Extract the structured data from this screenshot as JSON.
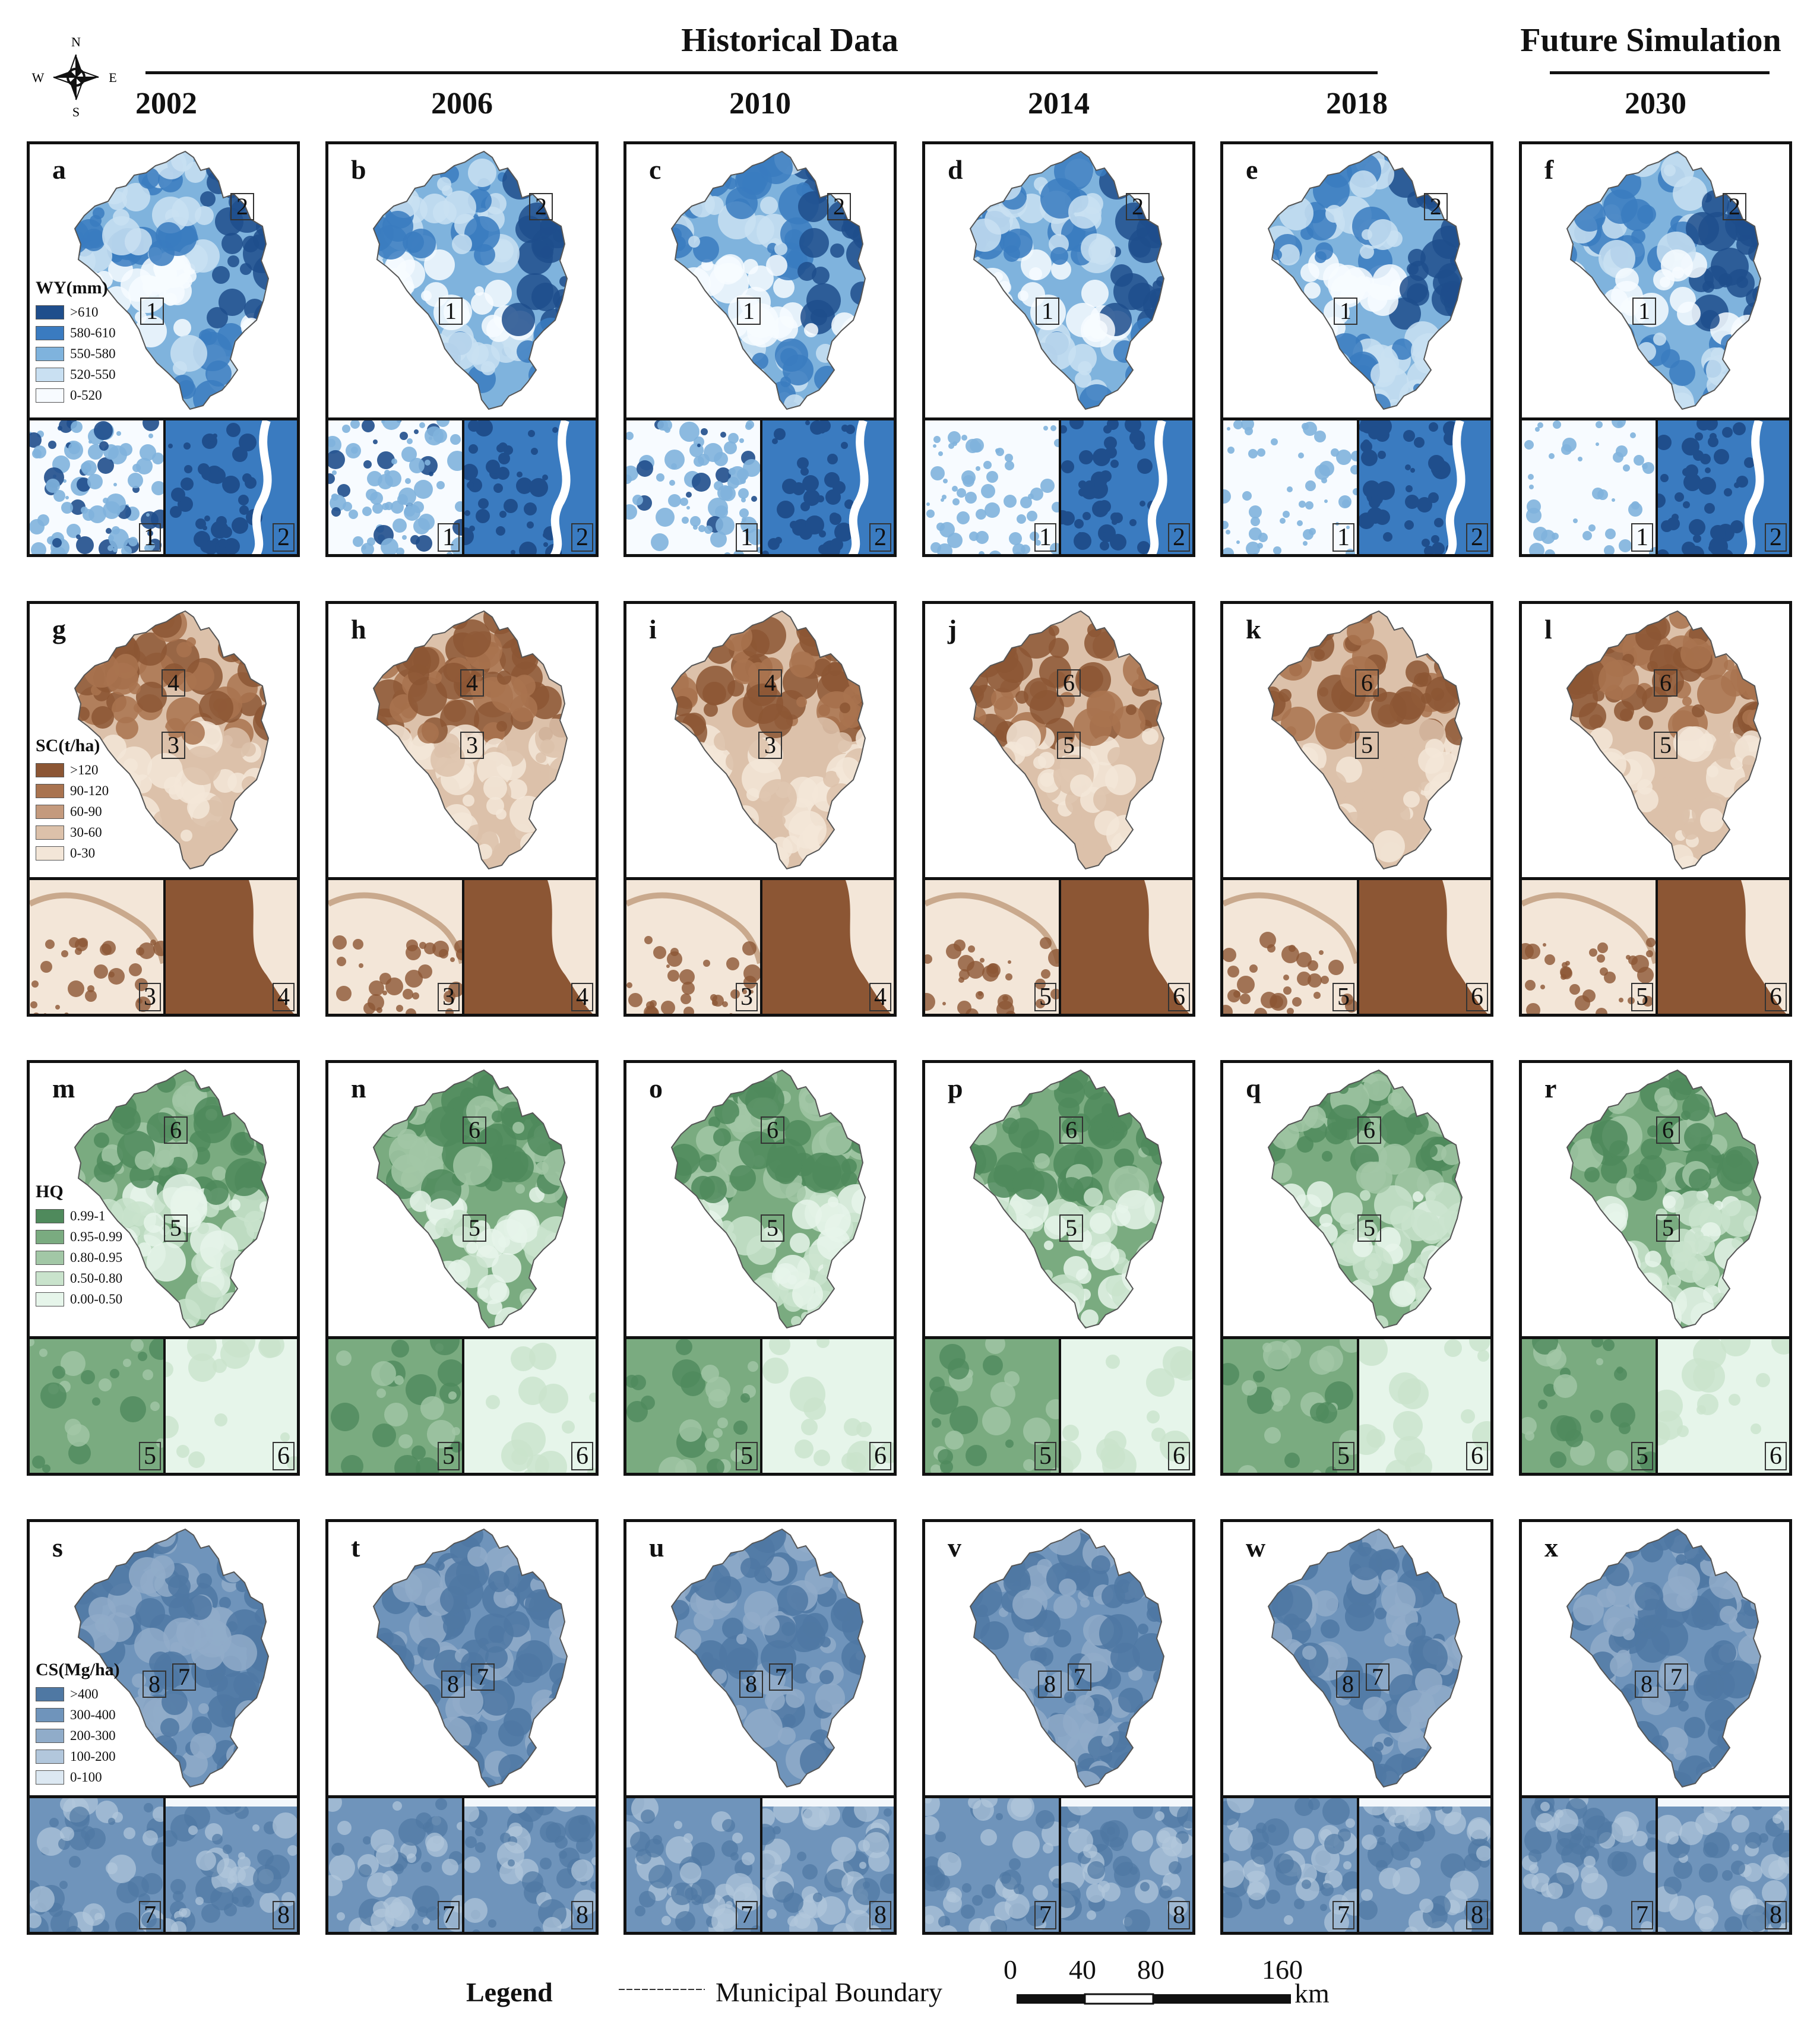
{
  "header": {
    "historical": "Historical Data",
    "future": "Future Simulation"
  },
  "compass": {
    "n": "N",
    "s": "S",
    "e": "E",
    "w": "W"
  },
  "years": [
    "2002",
    "2006",
    "2010",
    "2014",
    "2018",
    "2030"
  ],
  "rows": [
    {
      "id": "wy",
      "legend_title": "WY(mm)",
      "classes": [
        ">610",
        "580-610",
        "550-580",
        "520-550",
        "0-520"
      ],
      "colors": [
        "#1f4e8c",
        "#3a7bc0",
        "#7fb3dd",
        "#c9e0f2",
        "#f7fbff"
      ],
      "panel_labels": [
        "a",
        "b",
        "c",
        "d",
        "e",
        "f"
      ],
      "zoom_labels": [
        [
          "1",
          "2"
        ],
        [
          "1",
          "2"
        ],
        [
          "1",
          "2"
        ],
        [
          "1",
          "2"
        ],
        [
          "1",
          "2"
        ],
        [
          "1",
          "2"
        ]
      ]
    },
    {
      "id": "sc",
      "legend_title": "SC(t/ha)",
      "classes": [
        ">120",
        "90-120",
        "60-90",
        "30-60",
        "0-30"
      ],
      "colors": [
        "#8c5634",
        "#a9734f",
        "#c49a7d",
        "#dcc1aa",
        "#f3e6d8"
      ],
      "panel_labels": [
        "g",
        "h",
        "i",
        "j",
        "k",
        "l"
      ],
      "zoom_labels": [
        [
          "3",
          "4"
        ],
        [
          "3",
          "4"
        ],
        [
          "3",
          "4"
        ],
        [
          "5",
          "6"
        ],
        [
          "5",
          "6"
        ],
        [
          "5",
          "6"
        ]
      ]
    },
    {
      "id": "hq",
      "legend_title": "HQ",
      "classes": [
        "0.99-1",
        "0.95-0.99",
        "0.80-0.95",
        "0.50-0.80",
        "0.00-0.50"
      ],
      "colors": [
        "#4f8a5c",
        "#7aab80",
        "#a2c7a6",
        "#c9e3cc",
        "#e6f5ea"
      ],
      "panel_labels": [
        "m",
        "n",
        "o",
        "p",
        "q",
        "r"
      ],
      "zoom_labels": [
        [
          "5",
          "6"
        ],
        [
          "5",
          "6"
        ],
        [
          "5",
          "6"
        ],
        [
          "5",
          "6"
        ],
        [
          "5",
          "6"
        ],
        [
          "5",
          "6"
        ]
      ]
    },
    {
      "id": "cs",
      "legend_title": "CS(Mg/ha)",
      "classes": [
        ">400",
        "300-400",
        "200-300",
        "100-200",
        "0-100"
      ],
      "colors": [
        "#4f78a3",
        "#6f94bb",
        "#90acc9",
        "#b2c7dc",
        "#dce8f2"
      ],
      "panel_labels": [
        "s",
        "t",
        "u",
        "v",
        "w",
        "x"
      ],
      "zoom_labels": [
        [
          "7",
          "8"
        ],
        [
          "7",
          "8"
        ],
        [
          "7",
          "8"
        ],
        [
          "7",
          "8"
        ],
        [
          "7",
          "8"
        ],
        [
          "7",
          "8"
        ]
      ]
    }
  ],
  "footer": {
    "legend": "Legend",
    "boundary": "Municipal Boundary",
    "scale_ticks": [
      "0",
      "40",
      "80",
      "160"
    ],
    "scale_unit": "km"
  }
}
